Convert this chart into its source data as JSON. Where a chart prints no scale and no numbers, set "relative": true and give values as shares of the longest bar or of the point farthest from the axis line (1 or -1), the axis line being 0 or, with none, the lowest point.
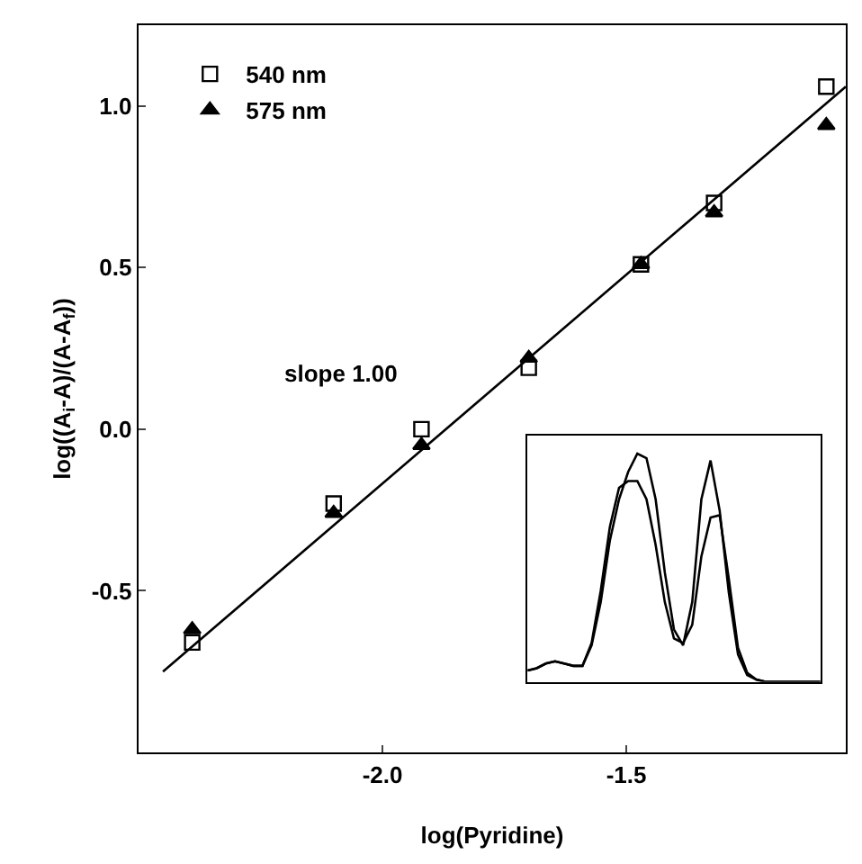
{
  "chart_data": [
    {
      "type": "scatter",
      "xlabel": "log(Pyridine)",
      "ylabel": "log((A$_{i}$-A)/(A-A$_{f}$))",
      "xlim": [
        -2.5,
        -1.05
      ],
      "ylim": [
        -1.0,
        1.25
      ],
      "xticks": [
        {
          "value": -2.0,
          "label": "-2.0"
        },
        {
          "value": -1.5,
          "label": "-1.5"
        }
      ],
      "yticks": [
        {
          "value": -0.5,
          "label": "-0.5"
        },
        {
          "value": 0,
          "label": "0.0"
        },
        {
          "value": 0.5,
          "label": "0.5"
        },
        {
          "value": 1.0,
          "label": "1.0"
        }
      ],
      "legend": "top left",
      "annotations": [
        "slope 1.00"
      ],
      "series": [
        {
          "name": "540 nm",
          "color": "#000000",
          "marker": "square",
          "x": [
            -2.39,
            -2.1,
            -1.92,
            -1.7,
            -1.47,
            -1.32,
            -1.09
          ],
          "values": [
            -0.66,
            -0.23,
            0.0,
            0.19,
            0.51,
            0.7,
            1.06
          ]
        },
        {
          "name": "575 nm",
          "color": "#000000",
          "marker": "triangle",
          "x": [
            -2.39,
            -2.1,
            -1.92,
            -1.7,
            -1.47,
            -1.32,
            -1.09
          ],
          "values": [
            -0.62,
            -0.26,
            -0.05,
            0.22,
            0.51,
            0.67,
            0.94
          ]
        },
        {
          "type": "line",
          "color": "#000000",
          "marker": "none",
          "x": [
            -2.45,
            -1.05
          ],
          "values": [
            -0.75,
            1.06
          ]
        }
      ]
    },
    {
      "type": "line",
      "relative": true,
      "tick_labels": false,
      "marker": "none",
      "categories": [
        null,
        null,
        null,
        null,
        null,
        null,
        null,
        null,
        null,
        null,
        null,
        null,
        null,
        null,
        null,
        null,
        null,
        null,
        null,
        null,
        null,
        null,
        null,
        null,
        null,
        null,
        null,
        null,
        null,
        null,
        null,
        null,
        null
      ],
      "series": [
        {
          "color": "#000000",
          "values": [
            0.05,
            0.06,
            0.08,
            0.09,
            0.08,
            0.07,
            0.07,
            0.16,
            0.35,
            0.62,
            0.8,
            0.92,
            1,
            0.98,
            0.8,
            0.48,
            0.23,
            0.16,
            0.35,
            0.8,
            0.97,
            0.75,
            0.39,
            0.12,
            0.03,
            0.01,
            0,
            0,
            0,
            0,
            0,
            0,
            0
          ]
        },
        {
          "color": "#000000",
          "values": [
            0.05,
            0.06,
            0.08,
            0.09,
            0.08,
            0.07,
            0.07,
            0.17,
            0.4,
            0.68,
            0.85,
            0.88,
            0.88,
            0.8,
            0.6,
            0.35,
            0.19,
            0.17,
            0.25,
            0.55,
            0.72,
            0.73,
            0.45,
            0.15,
            0.04,
            0.01,
            0,
            0,
            0,
            0,
            0,
            0,
            0
          ]
        }
      ]
    }
  ]
}
